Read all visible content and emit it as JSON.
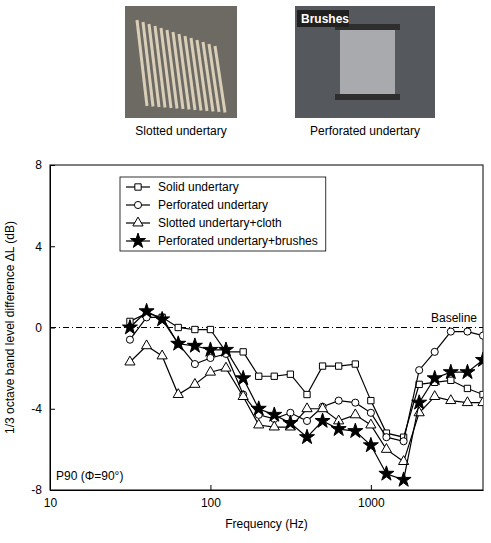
{
  "chart_data": {
    "type": "line",
    "x_label": "Frequency (Hz)",
    "y_label": "1/3 octave band level difference ΔL (dB)",
    "log": "x",
    "xlim": [
      10,
      5000
    ],
    "xticks": [
      10,
      100,
      1000
    ],
    "ylim": [
      -8,
      8
    ],
    "yticks": [
      -8,
      -4,
      0,
      4,
      8
    ],
    "legend": "upper left",
    "x": [
      31.5,
      40,
      50,
      63,
      80,
      100,
      125,
      160,
      200,
      250,
      315,
      400,
      500,
      630,
      800,
      1000,
      1250,
      1600,
      2000,
      2500,
      3150,
      4000,
      5000
    ],
    "series": [
      {
        "name": "Solid undertary",
        "color": "#000000",
        "marker": "square",
        "values": [
          0.3,
          0.7,
          0.5,
          0.0,
          -0.1,
          -0.1,
          -1.2,
          -1.2,
          -2.4,
          -2.4,
          -2.3,
          -3.3,
          -1.9,
          -1.9,
          -1.8,
          -3.6,
          -5.2,
          -5.4,
          -2.8,
          -2.7,
          -2.6,
          -3.0,
          -3.3
        ]
      },
      {
        "name": "Perforated undertary",
        "color": "#000000",
        "marker": "circle",
        "values": [
          -0.6,
          0.5,
          0.5,
          -0.8,
          -1.8,
          -1.5,
          -1.3,
          -3.3,
          -4.3,
          -4.5,
          -4.2,
          -4.6,
          -3.9,
          -3.6,
          -3.7,
          -4.2,
          -5.4,
          -5.6,
          -2.1,
          -1.2,
          -0.2,
          -0.2,
          -0.4
        ]
      },
      {
        "name": "Slotted undertary+cloth",
        "color": "#000000",
        "marker": "triangle",
        "values": [
          -1.7,
          -0.9,
          -1.4,
          -3.3,
          -2.8,
          -2.2,
          -2.0,
          -3.4,
          -4.8,
          -4.9,
          -4.9,
          -4.0,
          -4.0,
          -4.6,
          -4.3,
          -4.8,
          -6.0,
          -6.6,
          -4.2,
          -3.4,
          -3.6,
          -3.7,
          -3.7
        ]
      },
      {
        "name": "Perforated undertary+brushes",
        "color": "#000000",
        "marker": "star",
        "values": [
          0.0,
          0.8,
          0.4,
          -0.8,
          -0.9,
          -1.1,
          -1.1,
          -2.5,
          -4.0,
          -4.3,
          -4.7,
          -5.4,
          -4.6,
          -5.0,
          -5.1,
          -5.8,
          -7.2,
          -7.5,
          -3.7,
          -2.5,
          -2.2,
          -2.2,
          -1.6
        ]
      }
    ],
    "annotations": [
      {
        "text": "Baseline",
        "y": 0
      },
      {
        "text": "P90 (Φ=90°)"
      }
    ]
  },
  "photos": [
    {
      "caption": "Slotted undertary"
    },
    {
      "caption": "Perforated undertary",
      "label": "Brushes"
    }
  ]
}
